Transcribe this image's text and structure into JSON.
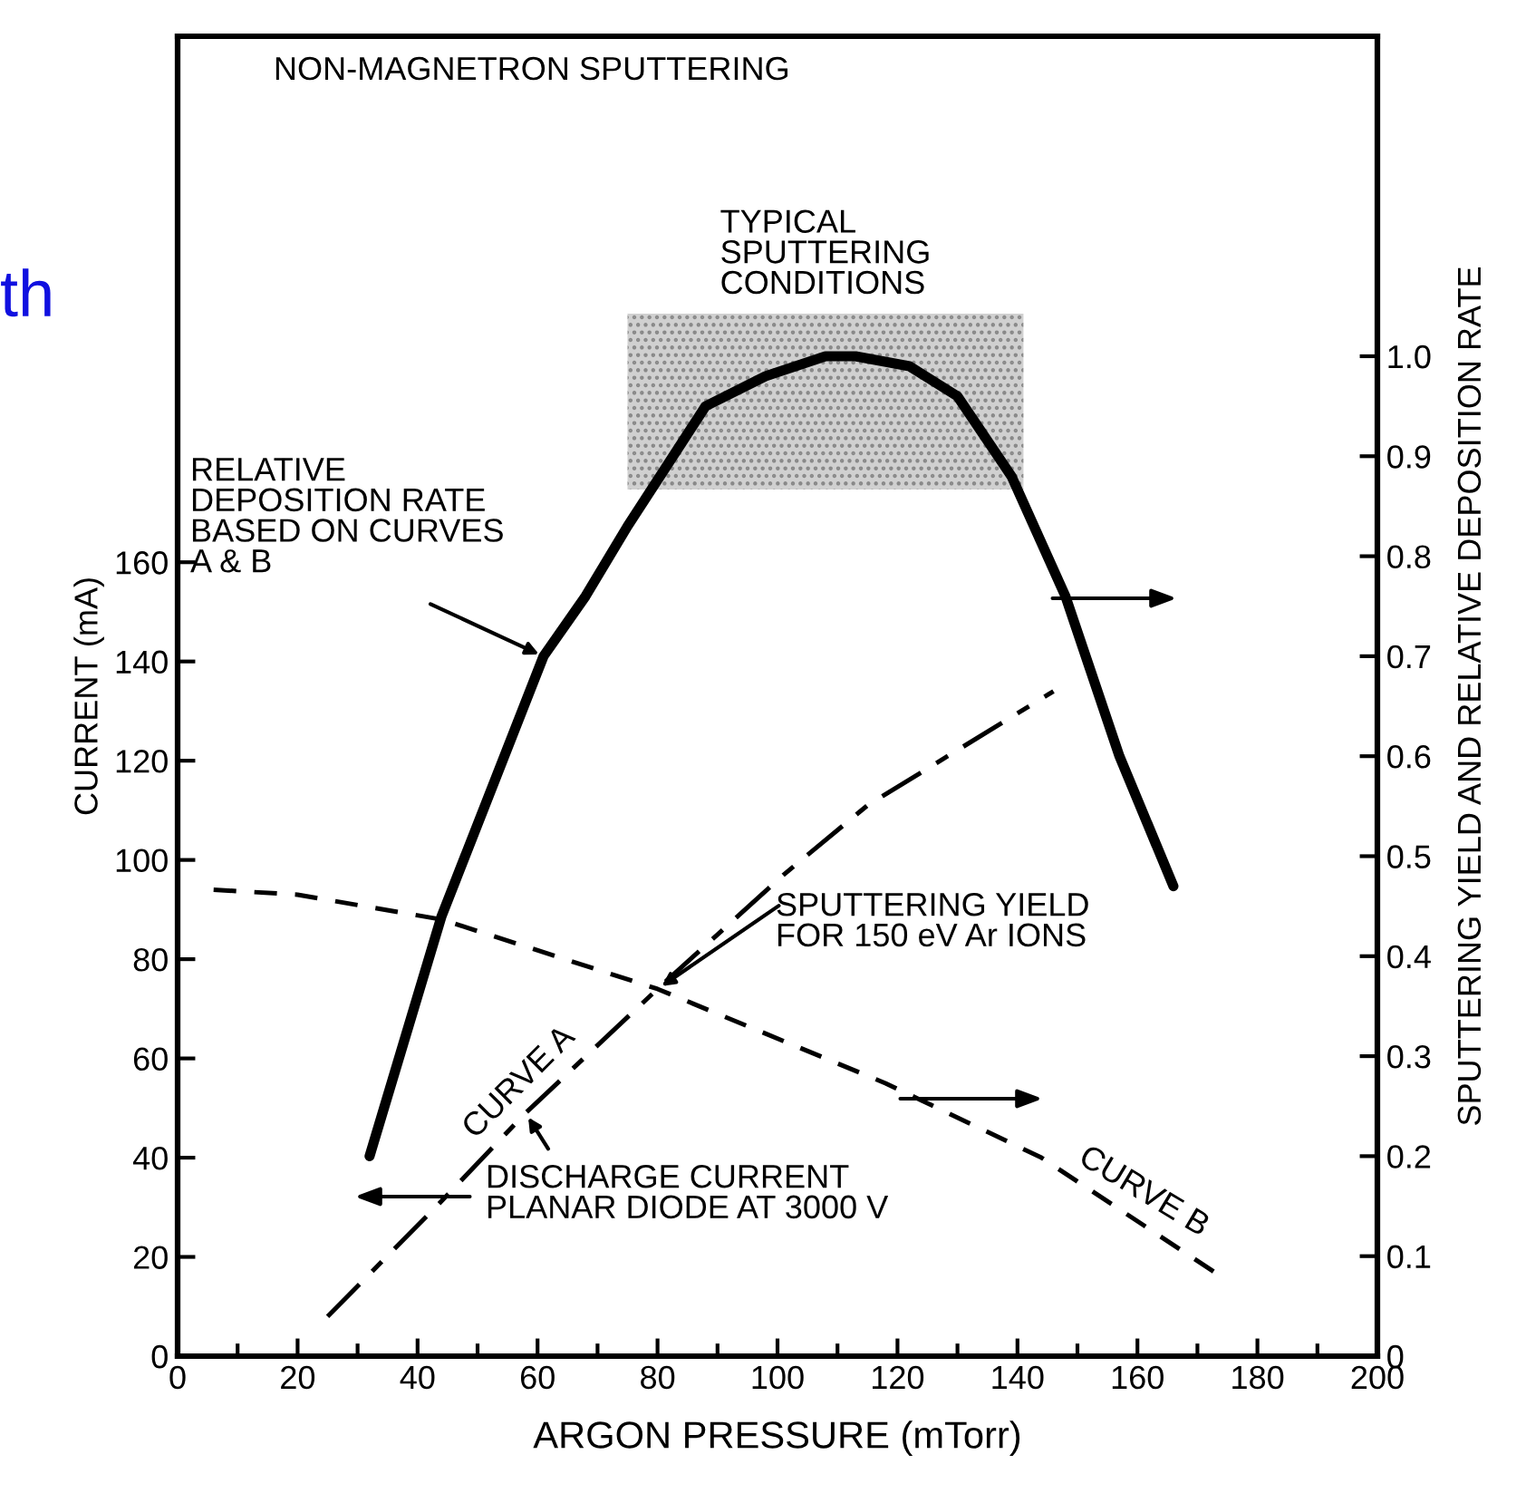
{
  "chart_data": {
    "type": "line",
    "title": "NON-MAGNETRON SPUTTERING",
    "xlabel": "ARGON PRESSURE (mTorr)",
    "ylabel": "CURRENT (mA)",
    "y2label": "SPUTTERING YIELD AND RELATIVE DEPOSITION RATE",
    "xlim": [
      0,
      200
    ],
    "xticks": [
      0,
      20,
      40,
      60,
      80,
      100,
      120,
      140,
      160,
      180,
      200
    ],
    "ylim": [
      0,
      266
    ],
    "yticks": [
      0,
      20,
      40,
      60,
      80,
      100,
      120,
      140,
      160
    ],
    "y2lim": [
      0,
      1.32
    ],
    "y2ticks": [
      {
        "value": 0,
        "label": "0"
      },
      0.1,
      0.2,
      0.3,
      0.4,
      0.5,
      0.6,
      0.7,
      0.8,
      0.9,
      {
        "value": 1.0,
        "label": "1.0"
      }
    ],
    "grid": false,
    "series": [
      {
        "axis": "y2",
        "color": "#000000",
        "line_style": "solid",
        "x": [
          32,
          44,
          61,
          68,
          75,
          88,
          98,
          108,
          113,
          122,
          130,
          139,
          148,
          157,
          166
        ],
        "values": [
          0.2,
          0.44,
          0.7,
          0.76,
          0.83,
          0.95,
          0.98,
          1.0,
          1.0,
          0.99,
          0.96,
          0.88,
          0.76,
          0.6,
          0.47
        ]
      },
      {
        "name": "CURVE A",
        "axis": "y",
        "color": "#000000",
        "line_style": "dashed",
        "x": [
          25,
          43,
          58,
          80,
          101,
          115,
          146
        ],
        "values": [
          8,
          30,
          49,
          74,
          97,
          111,
          134
        ]
      },
      {
        "name": "CURVE B",
        "axis": "y",
        "color": "#000000",
        "line_style": "dotted",
        "x": [
          6,
          20,
          44,
          80,
          118,
          144,
          174
        ],
        "values": [
          94,
          93,
          88,
          74,
          55,
          40,
          16
        ]
      }
    ],
    "bands": [
      {
        "axis": "x",
        "from": 75,
        "to": 141,
        "label": "TYPICAL\nSPUTTERING\nCONDITIONS",
        "color": "#d0d0d0"
      }
    ],
    "annotations": [
      {
        "text": "RELATIVE\nDEPOSITION RATE\nBASED ON CURVES\nA & B",
        "x": 61,
        "y": 141
      },
      {
        "text": "SPUTTERING YIELD\nFOR 150 eV Ar IONS",
        "x": 80,
        "y": 74
      },
      {
        "text": "DISCHARGE CURRENT\nPLANAR DIODE AT 3000 V",
        "x": 58,
        "y": 49
      },
      "th"
    ]
  }
}
